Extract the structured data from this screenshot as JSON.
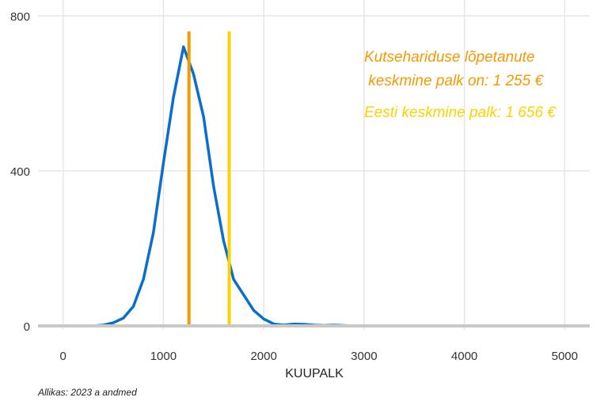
{
  "chart_data": {
    "type": "line",
    "xlabel": "KUUPALK",
    "ylabel": "",
    "xlim": [
      -250,
      5250
    ],
    "ylim": [
      0,
      800
    ],
    "x_ticks": [
      0,
      1000,
      2000,
      3000,
      4000,
      5000
    ],
    "y_ticks": [
      0,
      400,
      800
    ],
    "grid": true,
    "series": [
      {
        "color": "#0a6fcc",
        "x": [
          0,
          100,
          200,
          300,
          400,
          500,
          600,
          700,
          800,
          900,
          1000,
          1100,
          1200,
          1300,
          1400,
          1500,
          1600,
          1700,
          1800,
          1900,
          2000,
          2100,
          2200,
          2300,
          2400,
          2500,
          2600,
          2700,
          2800,
          2900,
          3000,
          3500,
          4000,
          4500,
          5000
        ],
        "values": [
          0,
          0,
          0,
          0,
          2,
          8,
          20,
          50,
          120,
          240,
          420,
          590,
          720,
          650,
          540,
          360,
          220,
          120,
          80,
          40,
          18,
          5,
          2,
          5,
          4,
          2,
          1,
          2,
          1,
          0,
          0,
          0,
          0,
          0,
          0
        ]
      }
    ],
    "vlines": [
      {
        "x": 1255,
        "color": "#f59a00"
      },
      {
        "x": 1656,
        "color": "#fcd200"
      }
    ],
    "annotations": [
      {
        "lines": [
          "Kutsehariduse lõpetanute",
          " keskmine palk on: 1 255 €"
        ],
        "color": "#f59a00"
      },
      {
        "lines": [
          "Eesti keskmine palk: 1 656 €"
        ],
        "color": "#fcd200"
      }
    ],
    "caption": "Allikas: 2023 a andmed"
  }
}
